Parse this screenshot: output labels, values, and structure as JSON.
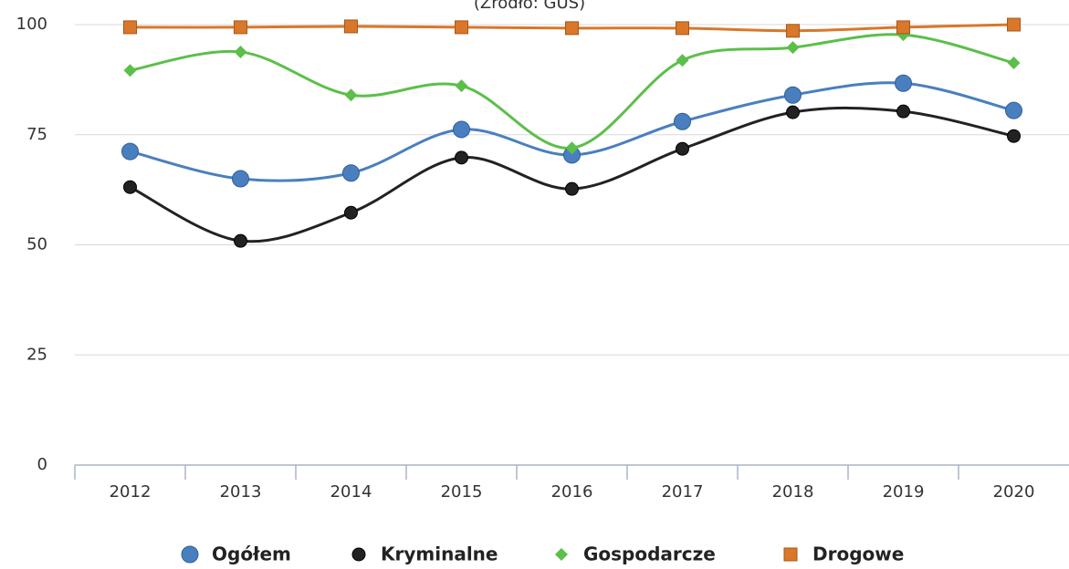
{
  "chart_data": {
    "type": "line",
    "subtitle": "(Źródło: GUS)",
    "categories": [
      "2012",
      "2013",
      "2014",
      "2015",
      "2016",
      "2017",
      "2018",
      "2019",
      "2020"
    ],
    "series": [
      {
        "name": "Ogółem",
        "color": "#4a7fbf",
        "marker": "circle",
        "values": [
          71.2,
          65,
          66.3,
          76.2,
          70.4,
          78,
          84,
          86.7,
          80.5
        ]
      },
      {
        "name": "Kryminalne",
        "color": "#222222",
        "marker": "circle",
        "values": [
          63.1,
          50.9,
          57.3,
          69.8,
          62.7,
          71.8,
          80.1,
          80.3,
          74.7
        ]
      },
      {
        "name": "Gospodarcze",
        "color": "#5cbf4a",
        "marker": "diamond",
        "values": [
          89.6,
          93.8,
          84,
          86.1,
          72,
          91.9,
          94.8,
          97.7,
          91.3
        ]
      },
      {
        "name": "Drogowe",
        "color": "#d9772a",
        "marker": "square",
        "values": [
          99.4,
          99.4,
          99.6,
          99.4,
          99.2,
          99.2,
          98.6,
          99.4,
          100
        ]
      }
    ],
    "ylim": [
      0,
      100
    ],
    "yticks": [
      0,
      25,
      50,
      75,
      100
    ],
    "grid": true,
    "smooth": true,
    "legend": "bottom"
  }
}
